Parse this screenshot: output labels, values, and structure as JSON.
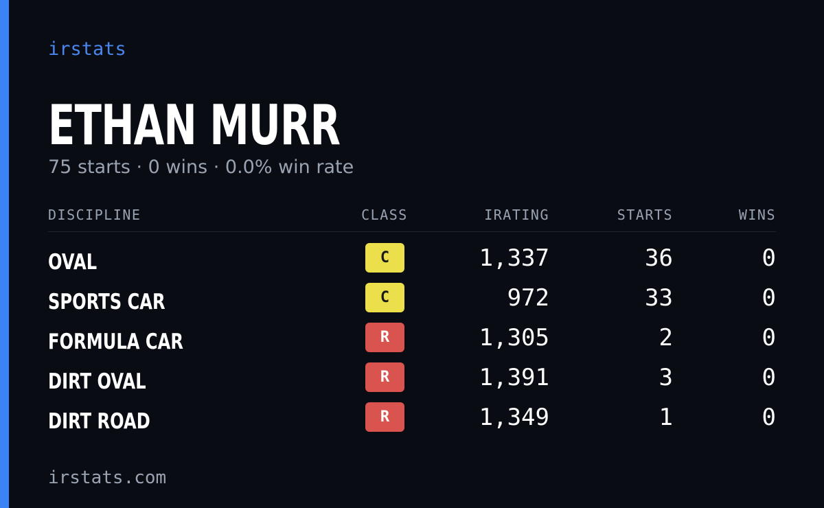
{
  "brand": "irstats",
  "driver": {
    "name": "ETHAN MURR",
    "summary": "75 starts · 0 wins · 0.0% win rate"
  },
  "table": {
    "columns": [
      "DISCIPLINE",
      "CLASS",
      "IRATING",
      "STARTS",
      "WINS"
    ],
    "rows": [
      {
        "discipline": "OVAL",
        "class": "C",
        "class_color": "#ebe04b",
        "class_text_color": "#1a1a1a",
        "irating": "1,337",
        "starts": 36,
        "wins": 0
      },
      {
        "discipline": "SPORTS CAR",
        "class": "C",
        "class_color": "#ebe04b",
        "class_text_color": "#1a1a1a",
        "irating": "972",
        "starts": 33,
        "wins": 0
      },
      {
        "discipline": "FORMULA CAR",
        "class": "R",
        "class_color": "#d9534f",
        "class_text_color": "#ffffff",
        "irating": "1,305",
        "starts": 2,
        "wins": 0
      },
      {
        "discipline": "DIRT OVAL",
        "class": "R",
        "class_color": "#d9534f",
        "class_text_color": "#ffffff",
        "irating": "1,391",
        "starts": 3,
        "wins": 0
      },
      {
        "discipline": "DIRT ROAD",
        "class": "R",
        "class_color": "#d9534f",
        "class_text_color": "#ffffff",
        "irating": "1,349",
        "starts": 1,
        "wins": 0
      }
    ]
  },
  "footer": "irstats.com"
}
